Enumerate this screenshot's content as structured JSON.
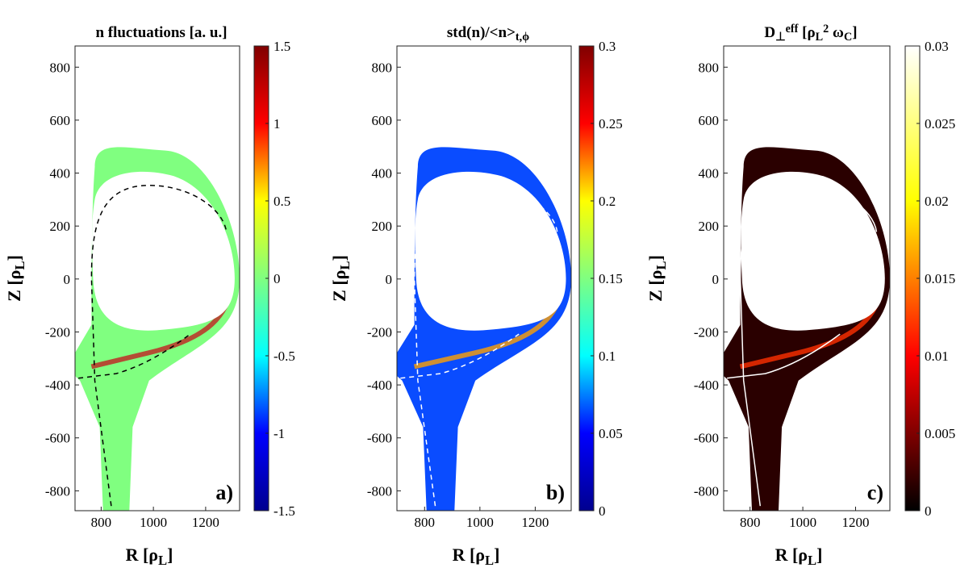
{
  "chart_data": [
    {
      "type": "heatmap",
      "title": [
        {
          "text": "n fluctuations  [a. u.]"
        }
      ],
      "xlabel": [
        {
          "text": "R  [ρ"
        },
        {
          "text": "L",
          "pos": "sub"
        },
        {
          "text": "]"
        }
      ],
      "ylabel": [
        {
          "text": "Z  [ρ"
        },
        {
          "text": "L",
          "pos": "sub"
        },
        {
          "text": "]"
        }
      ],
      "panel_label": "a)",
      "xlim": [
        700,
        1330
      ],
      "xticks": [
        800,
        1000,
        1200
      ],
      "ylim": [
        -875,
        880
      ],
      "yticks": [
        -800,
        -600,
        -400,
        -200,
        0,
        200,
        400,
        600,
        800
      ],
      "colorbar": {
        "clim": [
          -1.5,
          1.5
        ],
        "ticks": [
          -1.5,
          -1,
          -0.5,
          0,
          0.5,
          1,
          1.5
        ],
        "colormap": [
          "#00008f",
          "#0000ff",
          "#00ffff",
          "#80ff80",
          "#ffff00",
          "#ff0000",
          "#800000"
        ]
      }
    },
    {
      "type": "heatmap",
      "title": [
        {
          "text": "std(n)/<n>"
        },
        {
          "text": "t,ϕ",
          "pos": "sub"
        }
      ],
      "xlabel": [
        {
          "text": "R  [ρ"
        },
        {
          "text": "L",
          "pos": "sub"
        },
        {
          "text": "]"
        }
      ],
      "ylabel": [
        {
          "text": "Z  [ρ"
        },
        {
          "text": "L",
          "pos": "sub"
        },
        {
          "text": "]"
        }
      ],
      "panel_label": "b)",
      "xlim": [
        700,
        1330
      ],
      "xticks": [
        800,
        1000,
        1200
      ],
      "ylim": [
        -875,
        880
      ],
      "yticks": [
        -800,
        -600,
        -400,
        -200,
        0,
        200,
        400,
        600,
        800
      ],
      "colorbar": {
        "clim": [
          0,
          0.3
        ],
        "ticks": [
          0,
          0.05,
          0.1,
          0.15,
          0.2,
          0.25,
          0.3
        ],
        "colormap": [
          "#00008f",
          "#0000ff",
          "#00ffff",
          "#80ff80",
          "#ffff00",
          "#ff0000",
          "#800000"
        ]
      }
    },
    {
      "type": "heatmap",
      "title": [
        {
          "text": "D"
        },
        {
          "text": "⊥",
          "pos": "sub"
        },
        {
          "text": "eff",
          "pos": "sup"
        },
        {
          "text": " [ρ"
        },
        {
          "text": "L",
          "pos": "sub"
        },
        {
          "text": "2",
          "pos": "sup"
        },
        {
          "text": " ω"
        },
        {
          "text": "C",
          "pos": "sub"
        },
        {
          "text": "]"
        }
      ],
      "xlabel": [
        {
          "text": "R  [ρ"
        },
        {
          "text": "L",
          "pos": "sub"
        },
        {
          "text": "]"
        }
      ],
      "ylabel": [
        {
          "text": "Z  [ρ"
        },
        {
          "text": "L",
          "pos": "sub"
        },
        {
          "text": "]"
        }
      ],
      "panel_label": "c)",
      "xlim": [
        700,
        1330
      ],
      "xticks": [
        800,
        1000,
        1200
      ],
      "ylim": [
        -875,
        880
      ],
      "yticks": [
        -800,
        -600,
        -400,
        -200,
        0,
        200,
        400,
        600,
        800
      ],
      "colorbar": {
        "clim": [
          0,
          0.03
        ],
        "ticks": [
          0,
          0.005,
          0.01,
          0.015,
          0.02,
          0.025,
          0.03
        ],
        "colormap": [
          "#000000",
          "#ff0000",
          "#ffff00",
          "#ffffff"
        ]
      }
    }
  ]
}
